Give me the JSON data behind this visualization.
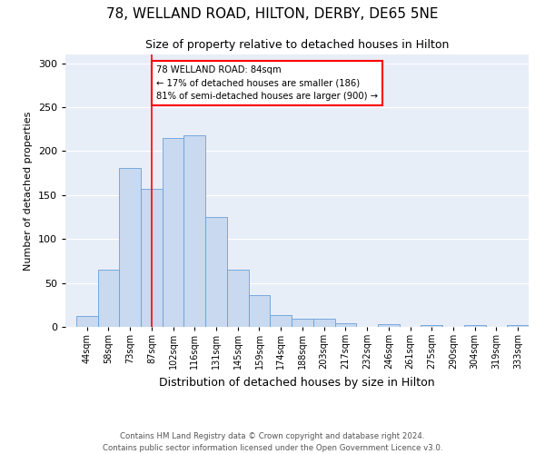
{
  "title": "78, WELLAND ROAD, HILTON, DERBY, DE65 5NE",
  "subtitle": "Size of property relative to detached houses in Hilton",
  "xlabel": "Distribution of detached houses by size in Hilton",
  "ylabel": "Number of detached properties",
  "bar_labels": [
    "44sqm",
    "58sqm",
    "73sqm",
    "87sqm",
    "102sqm",
    "116sqm",
    "131sqm",
    "145sqm",
    "159sqm",
    "174sqm",
    "188sqm",
    "203sqm",
    "217sqm",
    "232sqm",
    "246sqm",
    "261sqm",
    "275sqm",
    "290sqm",
    "304sqm",
    "319sqm",
    "333sqm"
  ],
  "bar_values": [
    12,
    65,
    181,
    157,
    215,
    218,
    125,
    65,
    36,
    13,
    9,
    9,
    4,
    0,
    3,
    0,
    2,
    0,
    2,
    0,
    2
  ],
  "bar_color": "#c8d9f0",
  "bar_edge_color": "#6a9fd8",
  "vline_x": 3.5,
  "vline_color": "red",
  "annotation_text": "78 WELLAND ROAD: 84sqm\n← 17% of detached houses are smaller (186)\n81% of semi-detached houses are larger (900) →",
  "annotation_box_color": "white",
  "annotation_box_edge": "red",
  "ylim": [
    0,
    310
  ],
  "yticks": [
    0,
    50,
    100,
    150,
    200,
    250,
    300
  ],
  "background_color": "#e8eef8",
  "footer_line1": "Contains HM Land Registry data © Crown copyright and database right 2024.",
  "footer_line2": "Contains public sector information licensed under the Open Government Licence v3.0."
}
